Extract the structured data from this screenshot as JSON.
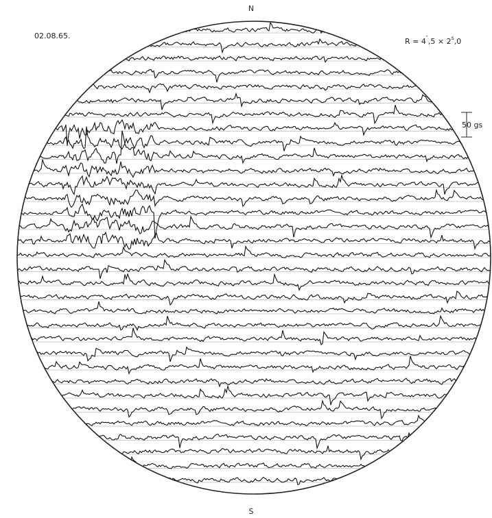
{
  "labels": {
    "north": "N",
    "south": "S",
    "date": "02.08.65.",
    "resolution": [
      "R = 4",
      "″",
      ",5 × 2",
      "s",
      ",0"
    ],
    "scale": "50 gs"
  }
}
